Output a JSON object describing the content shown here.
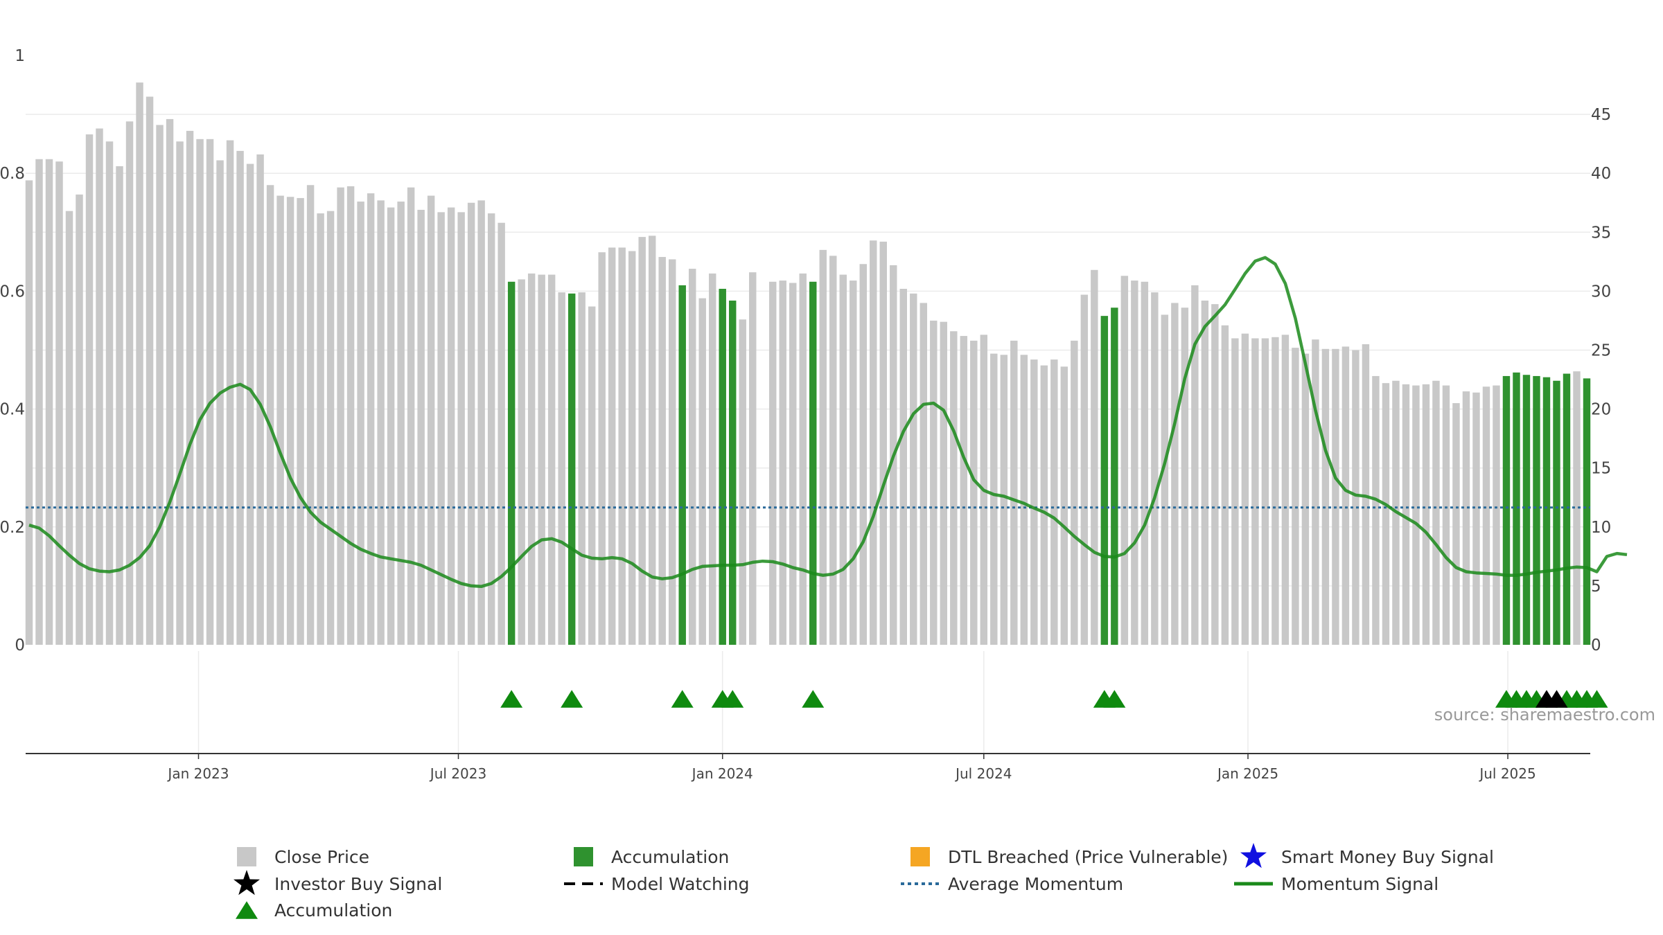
{
  "colors": {
    "close_price": "#c8c8c8",
    "accumulation_bar": "#2f922f",
    "accumulation_marker": "#0f8a0f",
    "dtl_breached": "#f5a623",
    "smart_money": "#1010e0",
    "investor_buy": "#000000",
    "average_momentum": "#2a6a9a",
    "momentum_signal": "#1a8a1a"
  },
  "source_text": "source: sharemaestro.com",
  "legend": [
    {
      "key": "close",
      "label": "Close Price",
      "symbol": "square-grey"
    },
    {
      "key": "accum_bar",
      "label": "Accumulation",
      "symbol": "square-green"
    },
    {
      "key": "dtl",
      "label": "DTL Breached (Price Vulnerable)",
      "symbol": "square-orange"
    },
    {
      "key": "smart",
      "label": "Smart Money Buy Signal",
      "symbol": "star-blue"
    },
    {
      "key": "investor",
      "label": "Investor Buy Signal",
      "symbol": "star-black"
    },
    {
      "key": "watch",
      "label": "Model Watching",
      "symbol": "dash-black"
    },
    {
      "key": "avg",
      "label": "Average Momentum",
      "symbol": "dot-blue"
    },
    {
      "key": "mom",
      "label": "Momentum Signal",
      "symbol": "line-green"
    },
    {
      "key": "accum_marker",
      "label": "Accumulation",
      "symbol": "triangle-green"
    }
  ],
  "chart_data": {
    "type": "bar",
    "x_ticks": [
      "Jan 2023",
      "Jul 2023",
      "Jan 2024",
      "Jul 2024",
      "Jan 2025",
      "Jul 2025"
    ],
    "left_axis": {
      "ticks": [
        "0",
        "0.2",
        "0.4",
        "0.6",
        "0.8",
        "1"
      ],
      "range": [
        0,
        1
      ]
    },
    "right_axis": {
      "ticks": [
        "0",
        "5",
        "10",
        "15",
        "20",
        "25",
        "30",
        "35",
        "40",
        "45"
      ],
      "range": [
        0,
        50
      ]
    },
    "start_date": "2022-09-05",
    "interval_days": 7,
    "close_prices": [
      39.4,
      41.2,
      41.2,
      41.0,
      36.8,
      38.2,
      43.3,
      43.8,
      42.7,
      40.6,
      44.4,
      47.7,
      46.5,
      44.1,
      44.6,
      42.7,
      43.6,
      42.9,
      42.9,
      41.1,
      42.8,
      41.9,
      40.8,
      41.6,
      39.0,
      38.1,
      38.0,
      37.9,
      39.0,
      36.6,
      36.8,
      38.8,
      38.9,
      37.6,
      38.3,
      37.7,
      37.1,
      37.6,
      38.8,
      36.9,
      38.1,
      36.7,
      37.1,
      36.7,
      37.5,
      37.7,
      36.6,
      35.8,
      30.8,
      31.0,
      31.5,
      31.4,
      31.4,
      29.9,
      29.8,
      29.9,
      28.7,
      33.3,
      33.7,
      33.7,
      33.4,
      34.6,
      34.7,
      32.9,
      32.7,
      30.5,
      31.9,
      29.4,
      31.5,
      30.2,
      29.2,
      27.6,
      31.6,
      null,
      30.8,
      30.9,
      30.7,
      31.5,
      30.8,
      33.5,
      33.0,
      31.4,
      30.9,
      32.3,
      34.3,
      34.2,
      32.2,
      30.2,
      29.8,
      29.0,
      27.5,
      27.4,
      26.6,
      26.2,
      25.8,
      26.3,
      24.7,
      24.6,
      25.8,
      24.6,
      24.2,
      23.7,
      24.2,
      23.6,
      25.8,
      29.7,
      31.8,
      27.9,
      28.6,
      31.3,
      30.9,
      30.8,
      29.9,
      28.0,
      29.0,
      28.6,
      30.5,
      29.2,
      28.9,
      27.1,
      26.0,
      26.4,
      26.0,
      26.0,
      26.1,
      26.3,
      25.2,
      24.7,
      25.9,
      25.1,
      25.1,
      25.3,
      25.0,
      25.5,
      22.8,
      22.2,
      22.4,
      22.1,
      22.0,
      22.1,
      22.4,
      22.0,
      20.5,
      21.5,
      21.4,
      21.9,
      22.0,
      22.8,
      23.1,
      22.9,
      22.8,
      22.7,
      22.4,
      23.0,
      23.2,
      22.6
    ],
    "accumulation_bar_indices": [
      48,
      54,
      65,
      69,
      70,
      78,
      107,
      108,
      147,
      148,
      149,
      150,
      151,
      152,
      153,
      155,
      156
    ],
    "accumulation_marker_indices": [
      48,
      54,
      65,
      69,
      70,
      78,
      107,
      108,
      147,
      148,
      149,
      150,
      153,
      154,
      155,
      156
    ],
    "investor_buy_indices": [
      151,
      152
    ],
    "average_momentum": 0.233,
    "momentum_signal": [
      0.203,
      0.198,
      0.185,
      0.168,
      0.152,
      0.138,
      0.129,
      0.125,
      0.124,
      0.127,
      0.135,
      0.148,
      0.168,
      0.2,
      0.242,
      0.29,
      0.34,
      0.382,
      0.41,
      0.427,
      0.437,
      0.442,
      0.433,
      0.408,
      0.37,
      0.325,
      0.283,
      0.25,
      0.225,
      0.208,
      0.196,
      0.184,
      0.172,
      0.162,
      0.155,
      0.149,
      0.146,
      0.143,
      0.14,
      0.135,
      0.127,
      0.119,
      0.111,
      0.104,
      0.1,
      0.099,
      0.104,
      0.116,
      0.132,
      0.15,
      0.167,
      0.178,
      0.18,
      0.174,
      0.163,
      0.152,
      0.147,
      0.146,
      0.148,
      0.146,
      0.138,
      0.125,
      0.115,
      0.112,
      0.114,
      0.12,
      0.128,
      0.133,
      0.134,
      0.135,
      0.135,
      0.136,
      0.14,
      0.142,
      0.141,
      0.137,
      0.131,
      0.127,
      0.121,
      0.118,
      0.12,
      0.128,
      0.146,
      0.175,
      0.218,
      0.27,
      0.32,
      0.362,
      0.392,
      0.408,
      0.41,
      0.398,
      0.363,
      0.318,
      0.28,
      0.262,
      0.255,
      0.252,
      0.246,
      0.24,
      0.232,
      0.225,
      0.215,
      0.2,
      0.184,
      0.17,
      0.157,
      0.15,
      0.149,
      0.155,
      0.173,
      0.203,
      0.25,
      0.308,
      0.376,
      0.452,
      0.51,
      0.54,
      0.558,
      0.577,
      0.603,
      0.63,
      0.651,
      0.657,
      0.646,
      0.613,
      0.554,
      0.477,
      0.398,
      0.33,
      0.283,
      0.262,
      0.254,
      0.252,
      0.247,
      0.238,
      0.226,
      0.216,
      0.206,
      0.191,
      0.17,
      0.148,
      0.131,
      0.124,
      0.122,
      0.121,
      0.12,
      0.118,
      0.118,
      0.12,
      0.123,
      0.125,
      0.127,
      0.13,
      0.132,
      0.131,
      0.124,
      0.15,
      0.155,
      0.153
    ]
  }
}
